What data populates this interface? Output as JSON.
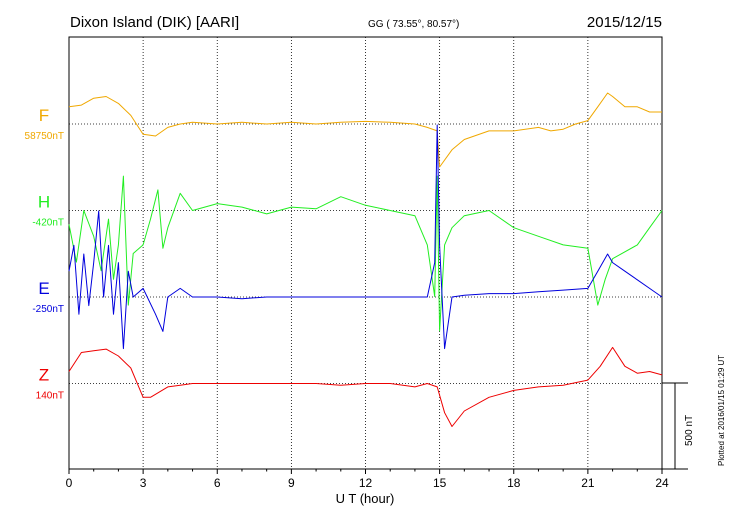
{
  "header": {
    "station": "Dixon Island (DIK)  [AARI]",
    "coords": "GG ( 73.55°,  80.57°)",
    "date": "2015/12/15"
  },
  "footer": {
    "plotted": "Plotted at 2016/01/15 01:29 UT",
    "scale_label": "500 nT"
  },
  "chart_data": {
    "type": "line",
    "xlabel": "U T (hour)",
    "xlim": [
      0,
      24
    ],
    "xticks": [
      "0",
      "3",
      "6",
      "9",
      "12",
      "15",
      "18",
      "21",
      "24"
    ],
    "grid": true,
    "scale_bar_nT": 500,
    "channel_spacing_nT": 590,
    "series": [
      {
        "name": "F",
        "baseline": "58750nT",
        "color": "#f0a800",
        "offset": 0,
        "values": [
          [
            0,
            100
          ],
          [
            0.5,
            110
          ],
          [
            1,
            150
          ],
          [
            1.5,
            160
          ],
          [
            2,
            120
          ],
          [
            2.5,
            50
          ],
          [
            3,
            -60
          ],
          [
            3.5,
            -70
          ],
          [
            4,
            -20
          ],
          [
            4.5,
            0
          ],
          [
            5,
            10
          ],
          [
            6,
            0
          ],
          [
            7,
            10
          ],
          [
            8,
            0
          ],
          [
            9,
            10
          ],
          [
            10,
            0
          ],
          [
            11,
            10
          ],
          [
            12,
            15
          ],
          [
            13,
            10
          ],
          [
            14,
            0
          ],
          [
            14.5,
            -20
          ],
          [
            14.9,
            -40
          ],
          [
            15,
            -250
          ],
          [
            15.5,
            -150
          ],
          [
            16,
            -90
          ],
          [
            17,
            -40
          ],
          [
            18,
            -40
          ],
          [
            19,
            -20
          ],
          [
            19.5,
            -40
          ],
          [
            20,
            -30
          ],
          [
            20.5,
            0
          ],
          [
            21,
            20
          ],
          [
            21.4,
            100
          ],
          [
            21.8,
            180
          ],
          [
            22,
            160
          ],
          [
            22.5,
            100
          ],
          [
            23,
            100
          ],
          [
            23.5,
            70
          ],
          [
            24,
            70
          ]
        ]
      },
      {
        "name": "H",
        "baseline": "-420nT",
        "color": "#22ee22",
        "offset": 1,
        "values": [
          [
            0,
            -80
          ],
          [
            0.3,
            -300
          ],
          [
            0.6,
            0
          ],
          [
            1,
            -150
          ],
          [
            1.3,
            -350
          ],
          [
            1.6,
            -50
          ],
          [
            1.8,
            -400
          ],
          [
            2,
            -200
          ],
          [
            2.2,
            200
          ],
          [
            2.4,
            -550
          ],
          [
            2.6,
            -250
          ],
          [
            3,
            -200
          ],
          [
            3.3,
            -50
          ],
          [
            3.6,
            120
          ],
          [
            3.8,
            -220
          ],
          [
            4,
            -100
          ],
          [
            4.5,
            100
          ],
          [
            5,
            0
          ],
          [
            6,
            40
          ],
          [
            7,
            20
          ],
          [
            8,
            -20
          ],
          [
            9,
            20
          ],
          [
            10,
            10
          ],
          [
            11,
            80
          ],
          [
            12,
            30
          ],
          [
            13,
            0
          ],
          [
            14,
            -30
          ],
          [
            14.5,
            -200
          ],
          [
            14.8,
            -500
          ],
          [
            14.9,
            200
          ],
          [
            15,
            -700
          ],
          [
            15.2,
            -200
          ],
          [
            15.5,
            -100
          ],
          [
            16,
            -30
          ],
          [
            17,
            0
          ],
          [
            18,
            -100
          ],
          [
            19,
            -150
          ],
          [
            20,
            -200
          ],
          [
            21,
            -220
          ],
          [
            21.4,
            -550
          ],
          [
            21.7,
            -400
          ],
          [
            22,
            -280
          ],
          [
            23,
            -200
          ],
          [
            23.5,
            -100
          ],
          [
            24,
            0
          ]
        ]
      },
      {
        "name": "E",
        "baseline": "-250nT",
        "color": "#0000dd",
        "offset": 2,
        "values": [
          [
            0,
            150
          ],
          [
            0.2,
            300
          ],
          [
            0.4,
            -100
          ],
          [
            0.6,
            250
          ],
          [
            0.8,
            -50
          ],
          [
            1,
            200
          ],
          [
            1.2,
            500
          ],
          [
            1.4,
            0
          ],
          [
            1.6,
            300
          ],
          [
            1.8,
            -100
          ],
          [
            2,
            200
          ],
          [
            2.2,
            -300
          ],
          [
            2.4,
            150
          ],
          [
            2.6,
            0
          ],
          [
            3,
            50
          ],
          [
            3.5,
            -100
          ],
          [
            3.8,
            -200
          ],
          [
            4,
            0
          ],
          [
            4.5,
            50
          ],
          [
            5,
            0
          ],
          [
            6,
            0
          ],
          [
            7,
            -10
          ],
          [
            8,
            0
          ],
          [
            9,
            0
          ],
          [
            10,
            0
          ],
          [
            11,
            0
          ],
          [
            12,
            0
          ],
          [
            13,
            0
          ],
          [
            14,
            0
          ],
          [
            14.5,
            0
          ],
          [
            14.8,
            200
          ],
          [
            14.9,
            1000
          ],
          [
            15,
            300
          ],
          [
            15.2,
            -300
          ],
          [
            15.5,
            0
          ],
          [
            16,
            10
          ],
          [
            17,
            20
          ],
          [
            18,
            20
          ],
          [
            19,
            30
          ],
          [
            20,
            40
          ],
          [
            21,
            50
          ],
          [
            21.4,
            150
          ],
          [
            21.8,
            250
          ],
          [
            22,
            200
          ],
          [
            22.5,
            150
          ],
          [
            23,
            100
          ],
          [
            23.5,
            50
          ],
          [
            24,
            0
          ]
        ]
      },
      {
        "name": "Z",
        "baseline": "140nT",
        "color": "#ee0000",
        "offset": 3,
        "values": [
          [
            0,
            70
          ],
          [
            0.5,
            180
          ],
          [
            1,
            190
          ],
          [
            1.5,
            200
          ],
          [
            2,
            160
          ],
          [
            2.5,
            90
          ],
          [
            3,
            -80
          ],
          [
            3.3,
            -80
          ],
          [
            4,
            -20
          ],
          [
            4.5,
            -10
          ],
          [
            5,
            0
          ],
          [
            6,
            0
          ],
          [
            7,
            0
          ],
          [
            8,
            0
          ],
          [
            9,
            0
          ],
          [
            10,
            0
          ],
          [
            11,
            -10
          ],
          [
            12,
            0
          ],
          [
            13,
            0
          ],
          [
            14,
            -20
          ],
          [
            14.5,
            0
          ],
          [
            14.9,
            -20
          ],
          [
            15.2,
            -170
          ],
          [
            15.5,
            -250
          ],
          [
            16,
            -160
          ],
          [
            17,
            -80
          ],
          [
            18,
            -40
          ],
          [
            19,
            -20
          ],
          [
            20,
            -10
          ],
          [
            21,
            20
          ],
          [
            21.5,
            100
          ],
          [
            22,
            210
          ],
          [
            22.5,
            100
          ],
          [
            23,
            60
          ],
          [
            23.5,
            70
          ],
          [
            24,
            50
          ]
        ]
      }
    ]
  }
}
